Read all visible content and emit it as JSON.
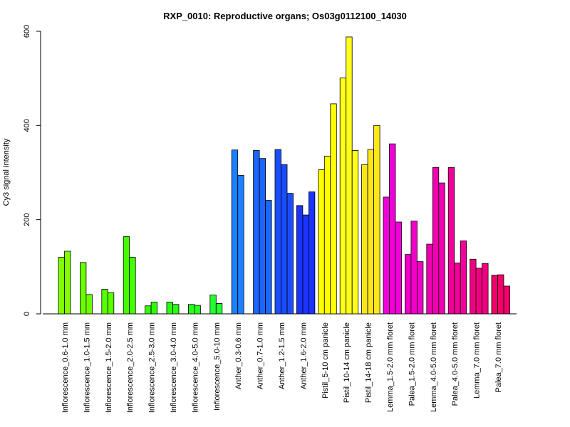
{
  "chart_data": {
    "type": "bar",
    "title": "RXP_0010: Reproductive organs; Os03g0112100_14030",
    "xlabel": "",
    "ylabel": "Cy3 signal intensity",
    "ylim": [
      0,
      600
    ],
    "yticks": [
      0,
      200,
      400,
      600
    ],
    "grid": false,
    "legend": "none",
    "categories": [
      {
        "label": "Inflorescence_0.6-1.0 mm",
        "color": "#80ff00",
        "values": [
          120,
          133
        ]
      },
      {
        "label": "Inflorescence_1.0-1.5 mm",
        "color": "#6cff00",
        "values": [
          109,
          41
        ]
      },
      {
        "label": "Inflorescence_1.5-2.0 mm",
        "color": "#58ff00",
        "values": [
          52,
          45
        ]
      },
      {
        "label": "Inflorescence_2.0-2.5 mm",
        "color": "#44ff00",
        "values": [
          164,
          120
        ]
      },
      {
        "label": "Inflorescence_2.5-3.0 mm",
        "color": "#30ff00",
        "values": [
          17,
          25
        ]
      },
      {
        "label": "Inflorescence_3.0-4.0 mm",
        "color": "#2cff10",
        "values": [
          25,
          20
        ]
      },
      {
        "label": "Inflorescence_4.0-5.0 mm",
        "color": "#28ff20",
        "values": [
          20,
          18
        ]
      },
      {
        "label": "Inflorescence_5.0-10 mm",
        "color": "#24ff30",
        "values": [
          40,
          22
        ]
      },
      {
        "label": "Anther_0.3-0.6 mm",
        "color": "#1a80ff",
        "values": [
          348,
          294
        ]
      },
      {
        "label": "Anther_0.7-1.0 mm",
        "color": "#1a66ff",
        "values": [
          347,
          330,
          241
        ]
      },
      {
        "label": "Anther_1.2-1.5 mm",
        "color": "#1a4dff",
        "values": [
          349,
          317,
          256
        ]
      },
      {
        "label": "Anther_1.6-2.0 mm",
        "color": "#1a33ff",
        "values": [
          230,
          210,
          259
        ]
      },
      {
        "label": "Pistil_5-10 cm panicle",
        "color": "#ffff00",
        "values": [
          306,
          335,
          446
        ]
      },
      {
        "label": "Pistil_10-14 cm panicle",
        "color": "#ffff1a",
        "values": [
          501,
          588,
          347
        ]
      },
      {
        "label": "Pistil_14-18 cm panicle",
        "color": "#ffe61a",
        "values": [
          317,
          349,
          400
        ]
      },
      {
        "label": "Lemma_1.5-2.0 mm floret",
        "color": "#f000d8",
        "values": [
          248,
          361,
          195
        ]
      },
      {
        "label": "Palea_1.5-2.0 mm floret",
        "color": "#f000c8",
        "values": [
          126,
          197,
          111
        ]
      },
      {
        "label": "Lemma_4.0-5.0 mm floret",
        "color": "#f000b0",
        "values": [
          148,
          311,
          278
        ]
      },
      {
        "label": "Palea_4.0-5.0 mm floret",
        "color": "#f00098",
        "values": [
          311,
          108,
          155
        ]
      },
      {
        "label": "Lemma_7.0 mm floret",
        "color": "#f00080",
        "values": [
          116,
          97,
          107
        ]
      },
      {
        "label": "Palea_7.0 mm floret",
        "color": "#f00068",
        "values": [
          82,
          83,
          59
        ]
      }
    ]
  }
}
